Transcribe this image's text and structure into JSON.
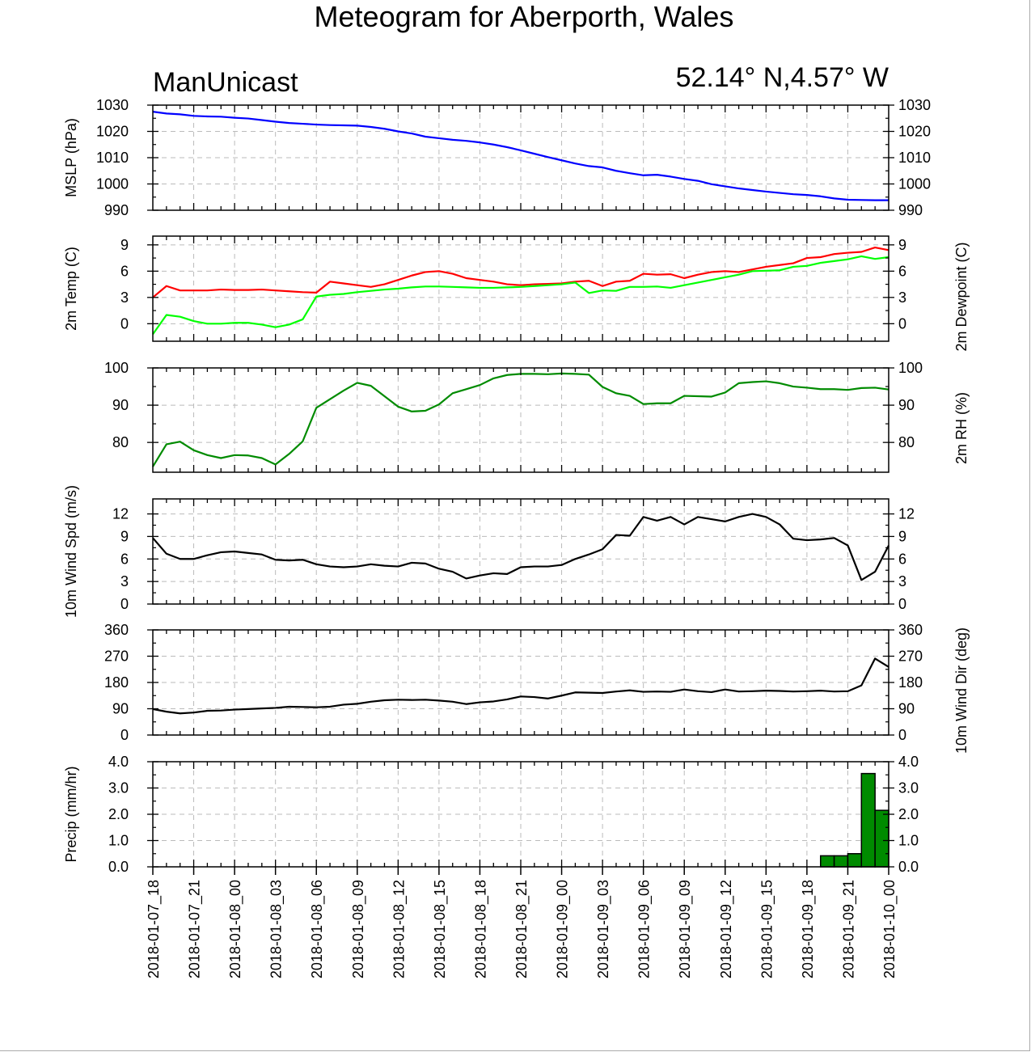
{
  "header": {
    "title": "Meteogram for Aberporth, Wales",
    "model": "ManUnicast",
    "location": "52.14° N,4.57° W"
  },
  "chart_data": {
    "type": "line",
    "time_axis": {
      "start": "2018-01-07_18",
      "end": "2018-01-10_00",
      "step_hours": 1,
      "tick_labels": [
        "2018-01-07_18",
        "2018-01-07_21",
        "2018-01-08_00",
        "2018-01-08_03",
        "2018-01-08_06",
        "2018-01-08_09",
        "2018-01-08_12",
        "2018-01-08_15",
        "2018-01-08_18",
        "2018-01-08_21",
        "2018-01-09_00",
        "2018-01-09_03",
        "2018-01-09_06",
        "2018-01-09_09",
        "2018-01-09_12",
        "2018-01-09_15",
        "2018-01-09_18",
        "2018-01-09_21",
        "2018-01-10_00"
      ]
    },
    "panels": [
      {
        "id": "mslp",
        "type": "line",
        "ylabel": "MSLP (hPa)",
        "ylabel_right": "",
        "ylim": [
          990,
          1030
        ],
        "ticks": [
          990,
          1000,
          1010,
          1020,
          1030
        ],
        "tick_labels": [
          "990",
          "1000",
          "1010",
          "1020",
          "1030"
        ],
        "series": [
          {
            "color": "#0000ff",
            "values": [
              1027.5,
              1026.8,
              1026.5,
              1025.9,
              1025.7,
              1025.6,
              1025.2,
              1024.9,
              1024.3,
              1023.7,
              1023.2,
              1022.9,
              1022.6,
              1022.4,
              1022.3,
              1022.2,
              1021.7,
              1021.0,
              1020.0,
              1019.2,
              1018.0,
              1017.4,
              1016.8,
              1016.4,
              1015.8,
              1015.0,
              1014.0,
              1012.8,
              1011.5,
              1010.2,
              1009.0,
              1007.8,
              1006.8,
              1006.3,
              1005.0,
              1004.1,
              1003.3,
              1003.5,
              1002.8,
              1001.9,
              1001.2,
              999.9,
              999.1,
              998.3,
              997.7,
              997.1,
              996.6,
              996.1,
              995.8,
              995.3,
              994.5,
              994.0,
              993.9,
              993.8,
              993.8
            ]
          }
        ]
      },
      {
        "id": "temp",
        "type": "line",
        "ylabel": "2m Temp (C)",
        "ylabel_right": "2m Dewpoint (C)",
        "ylim": [
          -2,
          10
        ],
        "ticks": [
          0,
          3,
          6,
          9
        ],
        "tick_labels": [
          "0",
          "3",
          "6",
          "9"
        ],
        "series": [
          {
            "color": "#ff0000",
            "values": [
              3.0,
              4.3,
              3.8,
              3.8,
              3.8,
              3.9,
              3.85,
              3.85,
              3.9,
              3.8,
              3.7,
              3.6,
              3.55,
              4.8,
              4.6,
              4.4,
              4.2,
              4.5,
              5.0,
              5.5,
              5.9,
              6.0,
              5.7,
              5.2,
              5.0,
              4.8,
              4.5,
              4.4,
              4.5,
              4.55,
              4.6,
              4.8,
              4.9,
              4.3,
              4.8,
              4.9,
              5.7,
              5.6,
              5.65,
              5.2,
              5.6,
              5.9,
              6.0,
              5.9,
              6.2,
              6.5,
              6.7,
              6.9,
              7.5,
              7.6,
              7.95,
              8.1,
              8.2,
              8.7,
              8.4
            ]
          },
          {
            "color": "#00ff00",
            "values": [
              -1.2,
              1.0,
              0.8,
              0.3,
              0.0,
              0.0,
              0.1,
              0.1,
              -0.1,
              -0.4,
              -0.1,
              0.5,
              3.1,
              3.3,
              3.4,
              3.6,
              3.75,
              3.9,
              4.0,
              4.15,
              4.25,
              4.25,
              4.2,
              4.15,
              4.1,
              4.1,
              4.15,
              4.2,
              4.3,
              4.4,
              4.5,
              4.7,
              3.5,
              3.8,
              3.75,
              4.2,
              4.2,
              4.25,
              4.1,
              4.4,
              4.7,
              5.0,
              5.3,
              5.6,
              6.0,
              6.05,
              6.1,
              6.5,
              6.6,
              6.95,
              7.15,
              7.35,
              7.7,
              7.4,
              7.6
            ]
          }
        ]
      },
      {
        "id": "rh",
        "type": "line",
        "ylabel": "",
        "ylabel_right": "2m RH (%)",
        "ylim": [
          72,
          100
        ],
        "ticks": [
          80,
          90,
          100
        ],
        "tick_labels": [
          "80",
          "90",
          "100"
        ],
        "series": [
          {
            "color": "#008b00",
            "values": [
              73.5,
              79.5,
              80.2,
              77.9,
              76.6,
              75.8,
              76.6,
              76.5,
              75.8,
              74.1,
              76.9,
              80.3,
              89.3,
              91.6,
              93.9,
              96.0,
              95.2,
              92.4,
              89.6,
              88.3,
              88.5,
              90.2,
              93.2,
              94.3,
              95.4,
              97.2,
              98.1,
              98.4,
              98.4,
              98.3,
              98.5,
              98.4,
              98.2,
              94.9,
              93.2,
              92.5,
              90.3,
              90.5,
              90.5,
              92.5,
              92.4,
              92.3,
              93.4,
              95.9,
              96.2,
              96.4,
              95.9,
              95.0,
              94.7,
              94.3,
              94.3,
              94.1,
              94.6,
              94.7,
              94.2
            ]
          }
        ]
      },
      {
        "id": "wspd",
        "type": "line",
        "ylabel": "10m Wind Spd (m/s)",
        "ylabel_right": "",
        "ylim": [
          0,
          14
        ],
        "ticks": [
          0,
          3,
          6,
          9,
          12
        ],
        "tick_labels": [
          "0",
          "3",
          "6",
          "9",
          "12"
        ],
        "series": [
          {
            "color": "#000000",
            "values": [
              8.8,
              6.7,
              6.0,
              6.0,
              6.5,
              6.9,
              7.0,
              6.8,
              6.6,
              5.9,
              5.8,
              5.9,
              5.3,
              5.0,
              4.9,
              5.0,
              5.3,
              5.1,
              5.0,
              5.5,
              5.4,
              4.7,
              4.3,
              3.4,
              3.8,
              4.1,
              4.0,
              4.9,
              5.0,
              5.0,
              5.2,
              6.0,
              6.6,
              7.3,
              9.2,
              9.1,
              11.6,
              11.1,
              11.6,
              10.6,
              11.6,
              11.3,
              11.0,
              11.6,
              12.0,
              11.6,
              10.6,
              8.7,
              8.5,
              8.6,
              8.8,
              7.8,
              3.2,
              4.3,
              7.8
            ]
          }
        ]
      },
      {
        "id": "wdir",
        "type": "line",
        "ylabel": "",
        "ylabel_right": "10m Wind Dir (deg)",
        "ylim": [
          0,
          360
        ],
        "ticks": [
          0,
          90,
          180,
          270,
          360
        ],
        "tick_labels": [
          "0",
          "90",
          "180",
          "270",
          "360"
        ],
        "series": [
          {
            "color": "#000000",
            "values": [
              89,
              80,
              74,
              77,
              83,
              84,
              87,
              89,
              91,
              93,
              97,
              96,
              95,
              97,
              104,
              107,
              114,
              119,
              121,
              120,
              121,
              118,
              114,
              106,
              112,
              115,
              122,
              132,
              130,
              125,
              135,
              146,
              145,
              144,
              149,
              153,
              148,
              149,
              148,
              156,
              150,
              147,
              156,
              149,
              150,
              152,
              151,
              149,
              150,
              152,
              149,
              150,
              170,
              262,
              233
            ]
          }
        ]
      },
      {
        "id": "precip",
        "type": "bar",
        "ylabel": "Precip (mm/hr)",
        "ylabel_right": "",
        "ylim": [
          0,
          4
        ],
        "ticks": [
          0,
          1,
          2,
          3,
          4
        ],
        "tick_labels": [
          "0.0",
          "1.0",
          "2.0",
          "3.0",
          "4.0"
        ],
        "bar_color": "#008b00",
        "bars": [
          {
            "hour": 49,
            "value": 0.42
          },
          {
            "hour": 50,
            "value": 0.42
          },
          {
            "hour": 51,
            "value": 0.5
          },
          {
            "hour": 52,
            "value": 3.55
          },
          {
            "hour": 53,
            "value": 2.15
          }
        ]
      }
    ]
  }
}
